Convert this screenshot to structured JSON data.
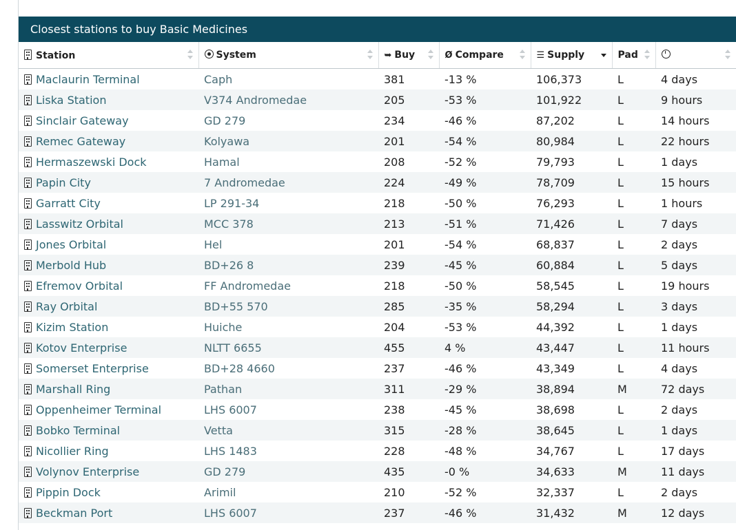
{
  "panel": {
    "title": "Closest stations to buy Basic Medicines"
  },
  "columns": {
    "station": "Station",
    "system": "System",
    "buy": "Buy",
    "compare": "Compare",
    "supply": "Supply",
    "pad": "Pad"
  },
  "icons": {
    "station_header": "building-icon",
    "system_header": "target-icon",
    "buy_header": "sign-in-icon",
    "compare_header": "diameter-icon",
    "supply_header": "list-icon",
    "updated_header": "clock-icon",
    "row_station": "building-icon"
  },
  "glyphs": {
    "buy": "➥",
    "compare": "Ø",
    "supply": "☰"
  },
  "rows": [
    {
      "station": "Maclaurin Terminal",
      "system": "Caph",
      "buy": "381",
      "compare": "-13 %",
      "supply": "106,373",
      "pad": "L",
      "updated": "4 days"
    },
    {
      "station": "Liska Station",
      "system": "V374 Andromedae",
      "buy": "205",
      "compare": "-53 %",
      "supply": "101,922",
      "pad": "L",
      "updated": "9 hours"
    },
    {
      "station": "Sinclair Gateway",
      "system": "GD 279",
      "buy": "234",
      "compare": "-46 %",
      "supply": "87,202",
      "pad": "L",
      "updated": "14 hours"
    },
    {
      "station": "Remec Gateway",
      "system": "Kolyawa",
      "buy": "201",
      "compare": "-54 %",
      "supply": "80,984",
      "pad": "L",
      "updated": "22 hours"
    },
    {
      "station": "Hermaszewski Dock",
      "system": "Hamal",
      "buy": "208",
      "compare": "-52 %",
      "supply": "79,793",
      "pad": "L",
      "updated": "1 days"
    },
    {
      "station": "Papin City",
      "system": "7 Andromedae",
      "buy": "224",
      "compare": "-49 %",
      "supply": "78,709",
      "pad": "L",
      "updated": "15 hours"
    },
    {
      "station": "Garratt City",
      "system": "LP 291-34",
      "buy": "218",
      "compare": "-50 %",
      "supply": "76,293",
      "pad": "L",
      "updated": "1 hours"
    },
    {
      "station": "Lasswitz Orbital",
      "system": "MCC 378",
      "buy": "213",
      "compare": "-51 %",
      "supply": "71,426",
      "pad": "L",
      "updated": "7 days"
    },
    {
      "station": "Jones Orbital",
      "system": "Hel",
      "buy": "201",
      "compare": "-54 %",
      "supply": "68,837",
      "pad": "L",
      "updated": "2 days"
    },
    {
      "station": "Merbold Hub",
      "system": "BD+26 8",
      "buy": "239",
      "compare": "-45 %",
      "supply": "60,884",
      "pad": "L",
      "updated": "5 days"
    },
    {
      "station": "Efremov Orbital",
      "system": "FF Andromedae",
      "buy": "218",
      "compare": "-50 %",
      "supply": "58,545",
      "pad": "L",
      "updated": "19 hours"
    },
    {
      "station": "Ray Orbital",
      "system": "BD+55 570",
      "buy": "285",
      "compare": "-35 %",
      "supply": "58,294",
      "pad": "L",
      "updated": "3 days"
    },
    {
      "station": "Kizim Station",
      "system": "Huiche",
      "buy": "204",
      "compare": "-53 %",
      "supply": "44,392",
      "pad": "L",
      "updated": "1 days"
    },
    {
      "station": "Kotov Enterprise",
      "system": "NLTT 6655",
      "buy": "455",
      "compare": "4 %",
      "supply": "43,447",
      "pad": "L",
      "updated": "11 hours"
    },
    {
      "station": "Somerset Enterprise",
      "system": "BD+28 4660",
      "buy": "237",
      "compare": "-46 %",
      "supply": "43,349",
      "pad": "L",
      "updated": "4 days"
    },
    {
      "station": "Marshall Ring",
      "system": "Pathan",
      "buy": "311",
      "compare": "-29 %",
      "supply": "38,894",
      "pad": "M",
      "updated": "72 days"
    },
    {
      "station": "Oppenheimer Terminal",
      "system": "LHS 6007",
      "buy": "238",
      "compare": "-45 %",
      "supply": "38,698",
      "pad": "L",
      "updated": "2 days"
    },
    {
      "station": "Bobko Terminal",
      "system": "Vetta",
      "buy": "315",
      "compare": "-28 %",
      "supply": "38,645",
      "pad": "L",
      "updated": "1 days"
    },
    {
      "station": "Nicollier Ring",
      "system": "LHS 1483",
      "buy": "228",
      "compare": "-48 %",
      "supply": "34,767",
      "pad": "L",
      "updated": "17 days"
    },
    {
      "station": "Volynov Enterprise",
      "system": "GD 279",
      "buy": "435",
      "compare": "-0 %",
      "supply": "34,633",
      "pad": "M",
      "updated": "11 days"
    },
    {
      "station": "Pippin Dock",
      "system": "Arimil",
      "buy": "210",
      "compare": "-52 %",
      "supply": "32,337",
      "pad": "L",
      "updated": "2 days"
    },
    {
      "station": "Beckman Port",
      "system": "LHS 6007",
      "buy": "237",
      "compare": "-46 %",
      "supply": "31,432",
      "pad": "M",
      "updated": "12 days"
    }
  ]
}
